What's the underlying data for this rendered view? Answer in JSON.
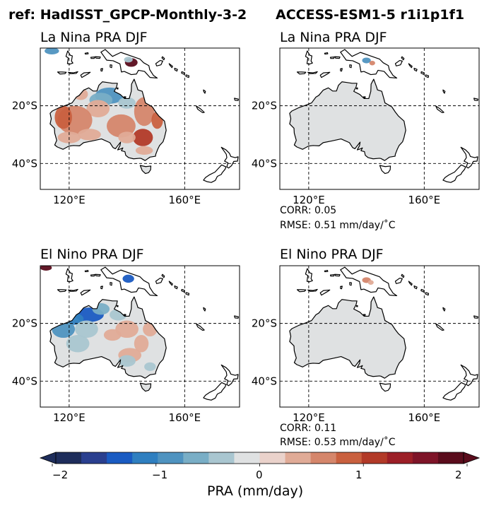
{
  "figure": {
    "ref_title": "ref: HadISST_GPCP-Monthly-3-2",
    "model_title": "ACCESS-ESM1-5 r1i1p1f1"
  },
  "panels": [
    {
      "title": "La Nina PRA DJF",
      "field": "ref_lanina"
    },
    {
      "title": "La Nina PRA DJF",
      "field": "model_lanina"
    },
    {
      "title": "El Nino PRA DJF",
      "field": "ref_elnino"
    },
    {
      "title": "El Nino PRA DJF",
      "field": "model_elnino"
    }
  ],
  "axes": {
    "xticks": [
      "120°E",
      "160°E"
    ],
    "yticks": [
      "20°S",
      "40°S"
    ],
    "lon_range": [
      110,
      179
    ],
    "lat_range": [
      -49,
      0
    ]
  },
  "stats": {
    "lanina": {
      "corr": "CORR: 0.05",
      "rmse": "RMSE: 0.51 mm/day/$^\\circ$C"
    },
    "elnino": {
      "corr": "CORR: 0.11",
      "rmse": "RMSE: 0.53 mm/day/$^\\circ$C"
    }
  },
  "stats_display": {
    "lanina": {
      "corr": "CORR: 0.05",
      "rmse": "RMSE: 0.51 mm/day/˚C"
    },
    "elnino": {
      "corr": "CORR: 0.11",
      "rmse": "RMSE: 0.53 mm/day/˚C"
    }
  },
  "colorbar": {
    "label": "PRA (mm/day)",
    "ticks": [
      "−2",
      "−1",
      "0",
      "1",
      "2"
    ],
    "min": -2,
    "max": 2,
    "colors": [
      "#1e2d5b",
      "#2a3f8f",
      "#1a5bc2",
      "#2f7fc0",
      "#4f93c0",
      "#79aec6",
      "#a9c6d0",
      "#dfe1e2",
      "#ead2cb",
      "#e0ab97",
      "#d5866b",
      "#c9603f",
      "#b23a28",
      "#9c1f27",
      "#7e1428",
      "#5a0c1c"
    ]
  },
  "chart_data": {
    "type": "heatmap",
    "title": "ref: HadISST_GPCP-Monthly-3-2 / ACCESS-ESM1-5 r1i1p1f1",
    "xlabel": "",
    "ylabel": "",
    "colorbar_label": "PRA (mm/day)",
    "value_range": [
      -2,
      2
    ],
    "panels": [
      "La Nina PRA DJF",
      "La Nina PRA DJF",
      "El Nino PRA DJF",
      "El Nino PRA DJF"
    ],
    "stats": [
      {
        "panel": "model La Nina",
        "corr": 0.05,
        "rmse": 0.51
      },
      {
        "panel": "model El Nino",
        "corr": 0.11,
        "rmse": 0.53
      }
    ]
  }
}
